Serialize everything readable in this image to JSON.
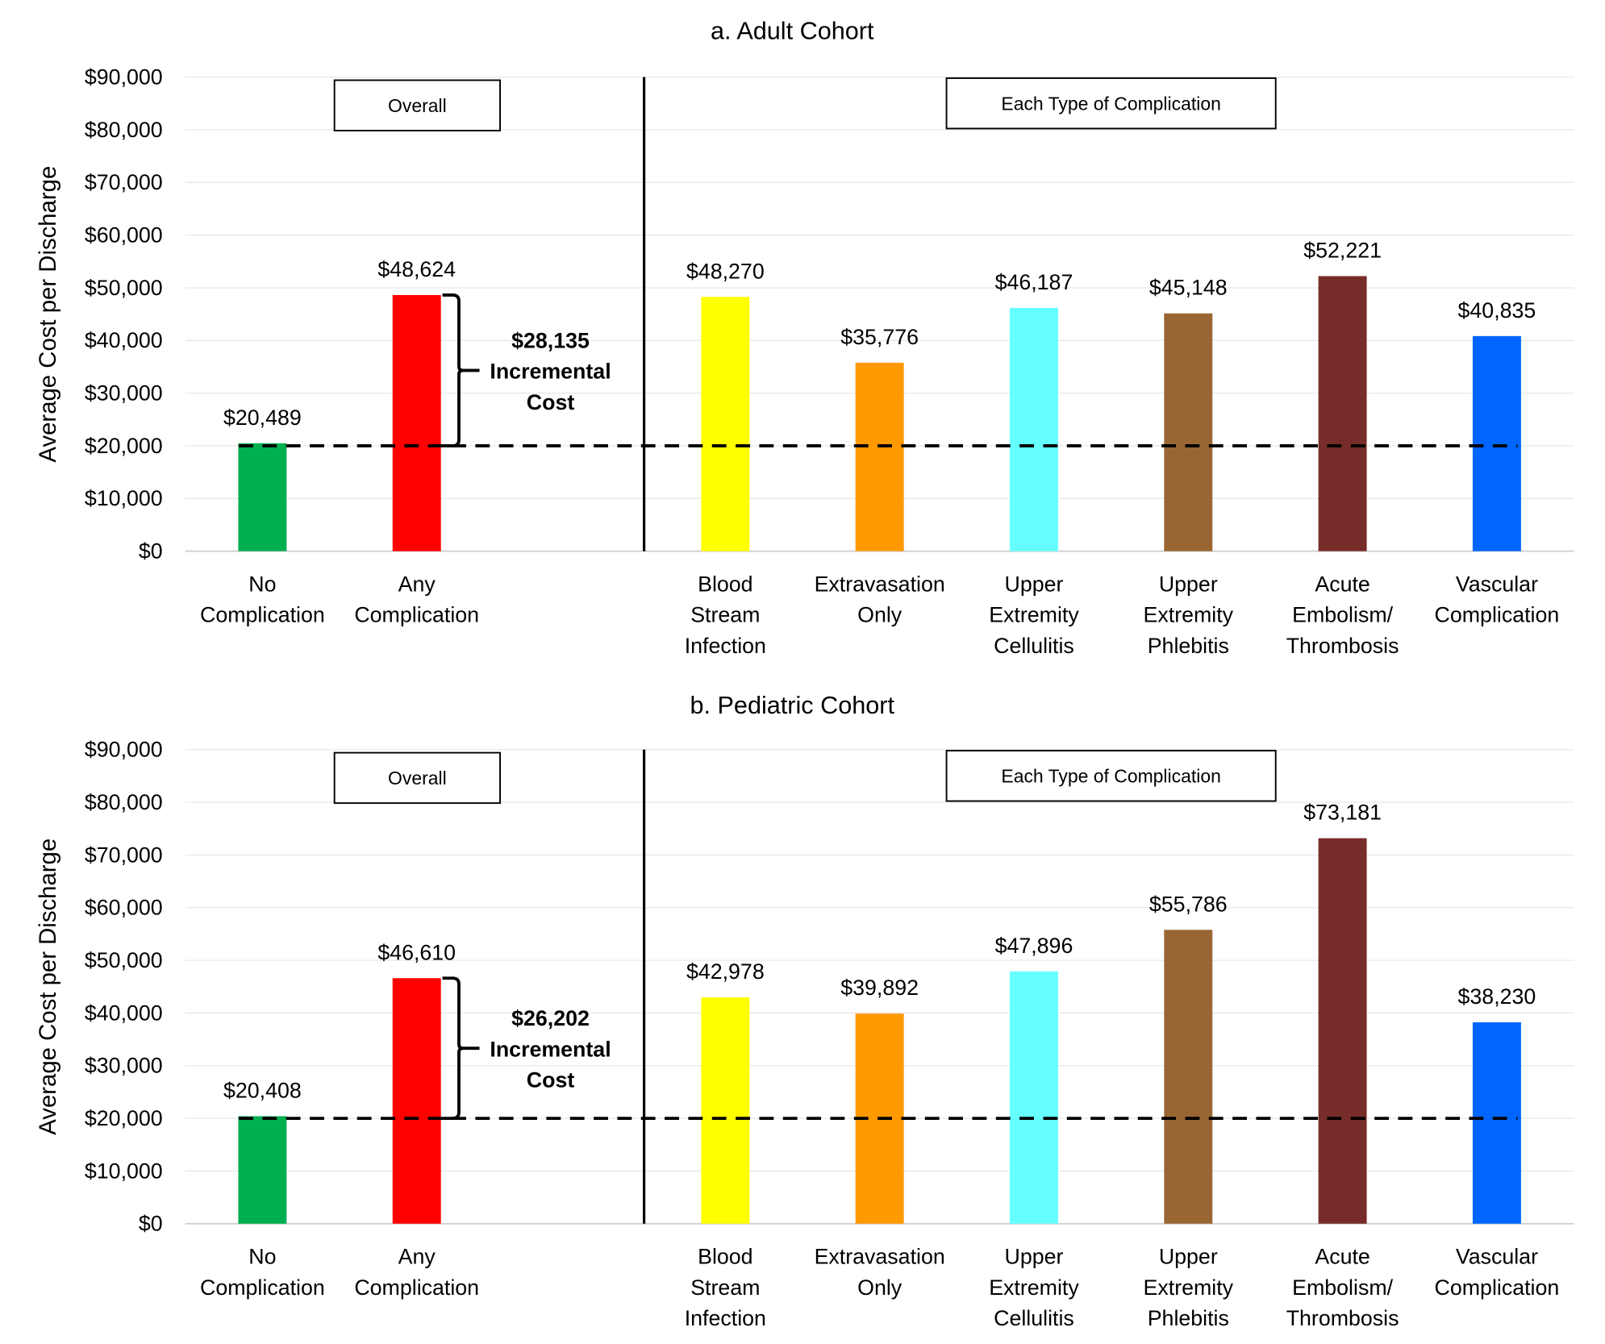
{
  "chart_data": [
    {
      "type": "bar",
      "title": "a. Adult Cohort",
      "ylabel": "Average Cost per Discharge",
      "xlabel": "",
      "ylim": [
        0,
        90000
      ],
      "yticks": [
        "$0",
        "$10,000",
        "$20,000",
        "$30,000",
        "$40,000",
        "$50,000",
        "$60,000",
        "$70,000",
        "$80,000",
        "$90,000"
      ],
      "grid": true,
      "group_labels": [
        "Overall",
        "Each Type of Complication"
      ],
      "categories": [
        [
          "No",
          "Complication"
        ],
        [
          "Any",
          "Complication"
        ],
        [
          "Blood",
          "Stream",
          "Infection"
        ],
        [
          "Extravasation",
          "Only"
        ],
        [
          "Upper",
          "Extremity",
          "Cellulitis"
        ],
        [
          "Upper",
          "Extremity",
          "Phlebitis"
        ],
        [
          "Acute",
          "Embolism/",
          "Thrombosis"
        ],
        [
          "Vascular",
          "Complication"
        ]
      ],
      "values": [
        20489,
        48624,
        48270,
        35776,
        46187,
        45148,
        52221,
        40835
      ],
      "data_labels": [
        "$20,489",
        "$48,624",
        "$48,270",
        "$35,776",
        "$46,187",
        "$45,148",
        "$52,221",
        "$40,835"
      ],
      "colors": [
        "#00B050",
        "#FF0000",
        "#FFFF00",
        "#FF9900",
        "#66FFFF",
        "#996633",
        "#772C2A",
        "#0066FF"
      ],
      "reference_line": {
        "value": 20000,
        "style": "dashed"
      },
      "annotation": [
        "$28,135",
        "Incremental",
        "Cost"
      ]
    },
    {
      "type": "bar",
      "title": "b. Pediatric Cohort",
      "ylabel": "Average Cost per Discharge",
      "xlabel": "",
      "ylim": [
        0,
        90000
      ],
      "yticks": [
        "$0",
        "$10,000",
        "$20,000",
        "$30,000",
        "$40,000",
        "$50,000",
        "$60,000",
        "$70,000",
        "$80,000",
        "$90,000"
      ],
      "grid": true,
      "group_labels": [
        "Overall",
        "Each Type of Complication"
      ],
      "categories": [
        [
          "No",
          "Complication"
        ],
        [
          "Any",
          "Complication"
        ],
        [
          "Blood",
          "Stream",
          "Infection"
        ],
        [
          "Extravasation",
          "Only"
        ],
        [
          "Upper",
          "Extremity",
          "Cellulitis"
        ],
        [
          "Upper",
          "Extremity",
          "Phlebitis"
        ],
        [
          "Acute",
          "Embolism/",
          "Thrombosis"
        ],
        [
          "Vascular",
          "Complication"
        ]
      ],
      "values": [
        20408,
        46610,
        42978,
        39892,
        47896,
        55786,
        73181,
        38230
      ],
      "data_labels": [
        "$20,408",
        "$46,610",
        "$42,978",
        "$39,892",
        "$47,896",
        "$55,786",
        "$73,181",
        "$38,230"
      ],
      "colors": [
        "#00B050",
        "#FF0000",
        "#FFFF00",
        "#FF9900",
        "#66FFFF",
        "#996633",
        "#772C2A",
        "#0066FF"
      ],
      "reference_line": {
        "value": 20000,
        "style": "dashed"
      },
      "annotation": [
        "$26,202",
        "Incremental",
        "Cost"
      ]
    }
  ]
}
